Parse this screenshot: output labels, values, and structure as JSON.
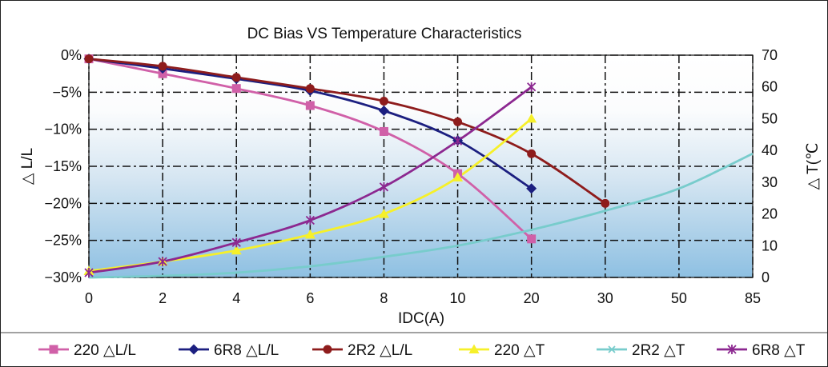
{
  "chart_data": {
    "type": "line",
    "title": "DC Bias VS Temperature Characteristics",
    "xlabel": "IDC(A)",
    "ylabel_left": "△ L/L",
    "ylabel_right": "△ T(℃",
    "categories": [
      "0",
      "2",
      "4",
      "6",
      "8",
      "10",
      "20",
      "30",
      "50",
      "85"
    ],
    "left_axis": {
      "ticks": [
        "0%",
        "−5%",
        "−10%",
        "−15%",
        "−20%",
        "−25%",
        "−30%"
      ],
      "ylim": [
        -30,
        0
      ],
      "unit": "%"
    },
    "right_axis": {
      "ticks": [
        "70",
        "60",
        "50",
        "40",
        "30",
        "20",
        "10",
        "0"
      ],
      "ylim": [
        0,
        70
      ]
    },
    "grid": true,
    "legend_position": "bottom",
    "series": [
      {
        "name": "220 △L/L",
        "axis": "left",
        "color": "#d060a8",
        "marker": "square",
        "x": [
          0,
          2,
          4,
          6,
          8,
          10,
          20
        ],
        "values": [
          -0.5,
          -2.5,
          -4.5,
          -6.8,
          -10.3,
          -16,
          -24.8
        ]
      },
      {
        "name": "6R8 △L/L",
        "axis": "left",
        "color": "#1c1f80",
        "marker": "diamond",
        "x": [
          0,
          2,
          4,
          6,
          8,
          10,
          20
        ],
        "values": [
          -0.5,
          -1.8,
          -3.2,
          -4.8,
          -7.5,
          -11.5,
          -18
        ]
      },
      {
        "name": "2R2 △L/L",
        "axis": "left",
        "color": "#8e1c1c",
        "marker": "circle",
        "x": [
          0,
          2,
          4,
          6,
          8,
          10,
          20,
          30
        ],
        "values": [
          -0.5,
          -1.5,
          -3,
          -4.5,
          -6.2,
          -9,
          -13.3,
          -20
        ]
      },
      {
        "name": "220 △T",
        "axis": "right",
        "color": "#f6f02a",
        "marker": "triangle",
        "x": [
          0,
          2,
          4,
          6,
          8,
          10,
          20
        ],
        "values": [
          2,
          5,
          8.5,
          13.5,
          20,
          31.5,
          50
        ]
      },
      {
        "name": "2R2 △T",
        "axis": "right",
        "color": "#78cccc",
        "marker": "x",
        "x": [
          0,
          2,
          4,
          6,
          8,
          10,
          20,
          30,
          50,
          85
        ],
        "values": [
          0,
          0.5,
          1.5,
          3.5,
          6.5,
          10,
          15,
          21,
          28,
          39
        ]
      },
      {
        "name": "6R8 △T",
        "axis": "right",
        "color": "#8c2890",
        "marker": "star",
        "x": [
          0,
          2,
          4,
          6,
          8,
          10,
          20
        ],
        "values": [
          1.5,
          5,
          11,
          18,
          28.5,
          43,
          60
        ]
      }
    ]
  }
}
